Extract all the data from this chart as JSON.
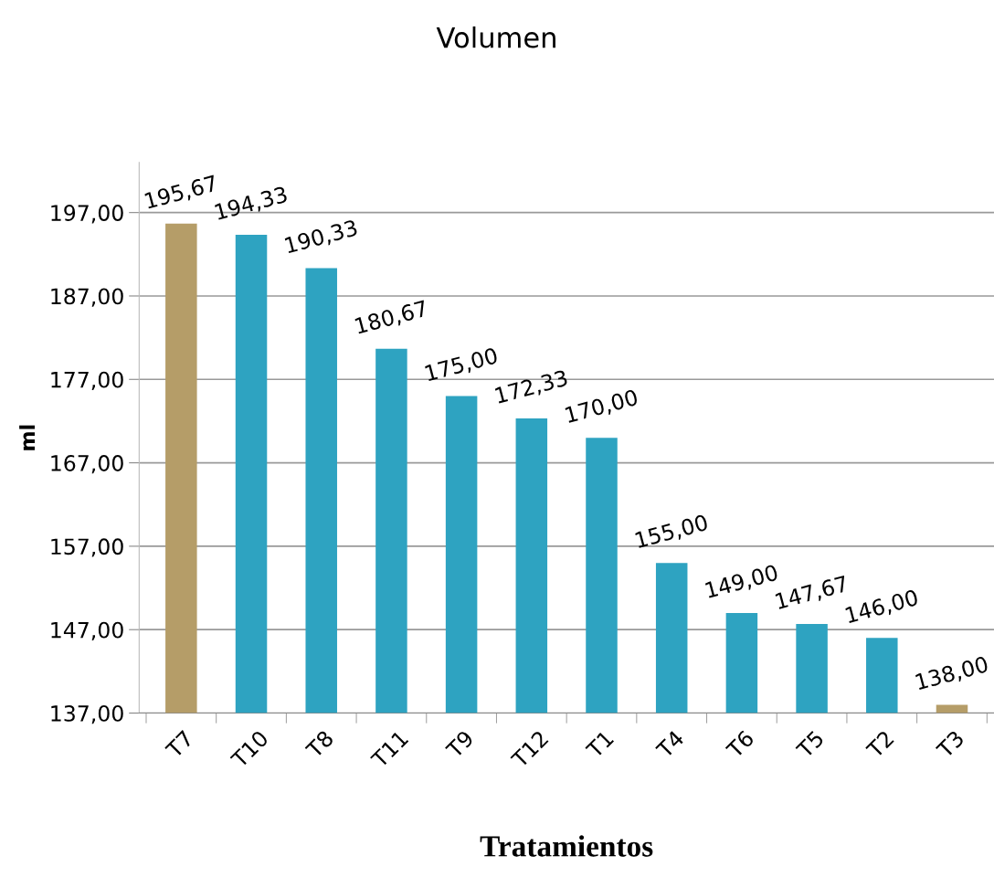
{
  "chart_data": {
    "type": "bar",
    "title": "Volumen",
    "xlabel": "Tratamientos",
    "ylabel": "ml",
    "categories": [
      "T7",
      "T10",
      "T8",
      "T11",
      "T9",
      "T12",
      "T1",
      "T4",
      "T6",
      "T5",
      "T2",
      "T3"
    ],
    "values": [
      195.67,
      194.33,
      190.33,
      180.67,
      175.0,
      172.33,
      170.0,
      155.0,
      149.0,
      147.67,
      146.0,
      138.0
    ],
    "value_labels": [
      "195,67",
      "194,33",
      "190,33",
      "180,67",
      "175,00",
      "172,33",
      "170,00",
      "155,00",
      "149,00",
      "147,67",
      "146,00",
      "138,00"
    ],
    "colors": [
      "#b59d68",
      "#2ea3c1",
      "#2ea3c1",
      "#2ea3c1",
      "#2ea3c1",
      "#2ea3c1",
      "#2ea3c1",
      "#2ea3c1",
      "#2ea3c1",
      "#2ea3c1",
      "#2ea3c1",
      "#b59d68"
    ],
    "ylim": [
      137,
      203
    ],
    "yticks": [
      {
        "value": 137,
        "label": "137,00"
      },
      {
        "value": 147,
        "label": "147,00"
      },
      {
        "value": 157,
        "label": "157,00"
      },
      {
        "value": 167,
        "label": "167,00"
      },
      {
        "value": 177,
        "label": "177,00"
      },
      {
        "value": 187,
        "label": "187,00"
      },
      {
        "value": 197,
        "label": "197,00"
      }
    ],
    "grid": "y",
    "legend": false
  }
}
